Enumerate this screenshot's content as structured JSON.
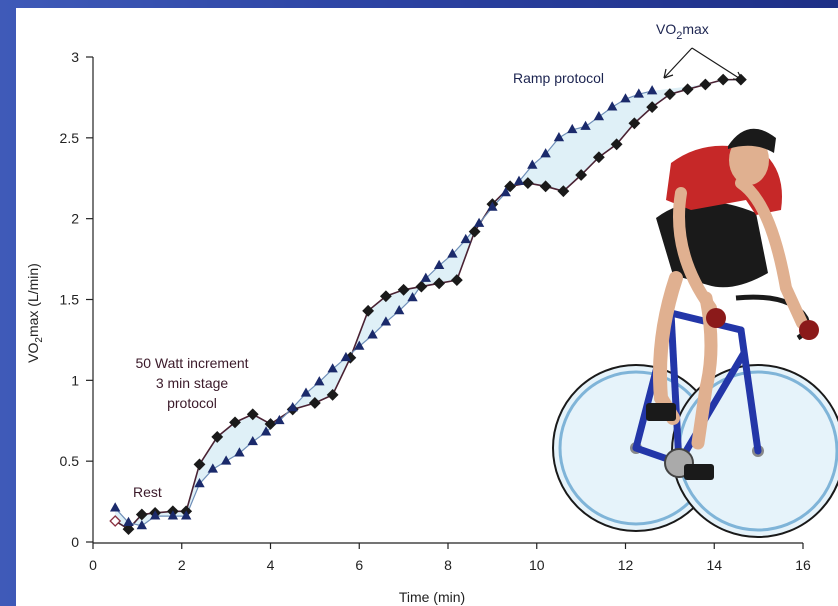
{
  "chart_data": {
    "type": "line",
    "xlabel": "Time (min)",
    "ylabel": "VO2max (L/min)",
    "ylabel_parts": [
      "VO",
      "2",
      "max (L/min)"
    ],
    "xlim": [
      0,
      16
    ],
    "ylim": [
      0,
      3
    ],
    "x_ticks": [
      "0",
      "2",
      "4",
      "6",
      "8",
      "10",
      "12",
      "14",
      "16"
    ],
    "y_ticks": [
      "0",
      "0.5",
      "1",
      "1.5",
      "2",
      "2.5",
      "3"
    ],
    "grid": false,
    "annotations": {
      "rest": "Rest",
      "step_protocol": [
        "50 Watt increment",
        "3 min stage",
        "protocol"
      ],
      "ramp": "Ramp protocol",
      "vo2max_parts": [
        "VO",
        "2",
        "max"
      ]
    },
    "series": [
      {
        "name": "50 Watt increment 3 min stage protocol",
        "marker": "diamond",
        "color": "#1a1a1a",
        "x": [
          0.5,
          0.8,
          1.1,
          1.4,
          1.8,
          2.1,
          2.4,
          2.8,
          3.2,
          3.6,
          4.0,
          4.5,
          5.0,
          5.4,
          5.8,
          6.2,
          6.6,
          7.0,
          7.4,
          7.8,
          8.2,
          8.6,
          9.0,
          9.4,
          9.8,
          10.2,
          10.6,
          11.0,
          11.4,
          11.8,
          12.2,
          12.6,
          13.0,
          13.4,
          13.8,
          14.2,
          14.6
        ],
        "y": [
          0.13,
          0.08,
          0.17,
          0.18,
          0.19,
          0.19,
          0.48,
          0.65,
          0.74,
          0.79,
          0.73,
          0.82,
          0.86,
          0.91,
          1.14,
          1.43,
          1.52,
          1.56,
          1.58,
          1.6,
          1.62,
          1.92,
          2.09,
          2.2,
          2.22,
          2.2,
          2.17,
          2.27,
          2.38,
          2.46,
          2.59,
          2.69,
          2.77,
          2.8,
          2.83,
          2.86,
          2.86
        ]
      },
      {
        "name": "Ramp protocol",
        "marker": "triangle",
        "color": "#1b2a6b",
        "x": [
          0.5,
          0.8,
          1.1,
          1.4,
          1.8,
          2.1,
          2.4,
          2.7,
          3.0,
          3.3,
          3.6,
          3.9,
          4.2,
          4.5,
          4.8,
          5.1,
          5.4,
          5.7,
          6.0,
          6.3,
          6.6,
          6.9,
          7.2,
          7.5,
          7.8,
          8.1,
          8.4,
          8.7,
          9.0,
          9.3,
          9.6,
          9.9,
          10.2,
          10.5,
          10.8,
          11.1,
          11.4,
          11.7,
          12.0,
          12.3,
          12.6
        ],
        "y": [
          0.21,
          0.12,
          0.1,
          0.16,
          0.16,
          0.16,
          0.36,
          0.45,
          0.5,
          0.55,
          0.62,
          0.68,
          0.75,
          0.83,
          0.92,
          0.99,
          1.07,
          1.14,
          1.21,
          1.28,
          1.36,
          1.43,
          1.51,
          1.63,
          1.71,
          1.78,
          1.87,
          1.97,
          2.07,
          2.16,
          2.23,
          2.33,
          2.4,
          2.5,
          2.55,
          2.57,
          2.63,
          2.69,
          2.74,
          2.77,
          2.79
        ]
      }
    ]
  }
}
